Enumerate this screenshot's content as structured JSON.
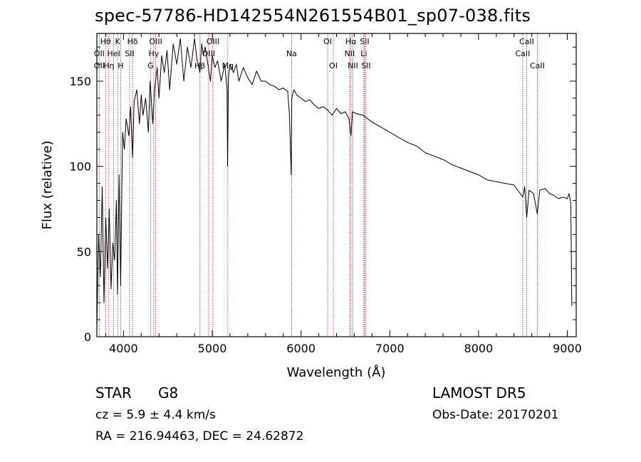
{
  "chart_data": {
    "type": "line",
    "title": "spec-57786-HD142554N261554B01_sp07-038.fits",
    "xlabel": "Wavelength (Å)",
    "ylabel": "Flux (relative)",
    "xlim": [
      3700,
      9100
    ],
    "ylim": [
      0,
      178
    ],
    "x_ticks": [
      4000,
      5000,
      6000,
      7000,
      8000,
      9000
    ],
    "y_ticks": [
      0,
      50,
      100,
      150
    ],
    "series": [
      {
        "x": [
          3700,
          3720,
          3740,
          3760,
          3780,
          3800,
          3820,
          3840,
          3860,
          3880,
          3900,
          3920,
          3933,
          3950,
          3968,
          3990,
          4010,
          4030,
          4060,
          4080,
          4102,
          4120,
          4150,
          4180,
          4200,
          4220,
          4250,
          4280,
          4300,
          4330,
          4350,
          4380,
          4400,
          4430,
          4460,
          4490,
          4520,
          4560,
          4600,
          4640,
          4680,
          4720,
          4760,
          4800,
          4830,
          4861,
          4880,
          4900,
          4920,
          4950,
          4980,
          5000,
          5030,
          5060,
          5100,
          5140,
          5167,
          5172,
          5183,
          5200,
          5240,
          5270,
          5300,
          5350,
          5400,
          5450,
          5500,
          5550,
          5600,
          5650,
          5700,
          5750,
          5800,
          5850,
          5870,
          5890,
          5896,
          5920,
          5950,
          6000,
          6050,
          6100,
          6150,
          6200,
          6250,
          6300,
          6350,
          6400,
          6450,
          6500,
          6540,
          6563,
          6580,
          6620,
          6700,
          6750,
          6800,
          6900,
          7000,
          7100,
          7200,
          7300,
          7400,
          7500,
          7600,
          7700,
          7800,
          7900,
          8000,
          8100,
          8200,
          8300,
          8400,
          8498,
          8520,
          8542,
          8570,
          8620,
          8662,
          8690,
          8750,
          8800,
          8850,
          8900,
          8950,
          9000,
          9020,
          9040,
          9050
        ],
        "y": [
          5,
          60,
          35,
          88,
          20,
          70,
          40,
          75,
          28,
          55,
          45,
          80,
          25,
          95,
          30,
          120,
          110,
          128,
          118,
          135,
          105,
          138,
          145,
          125,
          142,
          130,
          140,
          120,
          150,
          125,
          145,
          158,
          140,
          165,
          155,
          168,
          145,
          172,
          160,
          175,
          150,
          170,
          158,
          175,
          162,
          155,
          172,
          165,
          170,
          160,
          150,
          165,
          158,
          162,
          150,
          160,
          145,
          100,
          152,
          160,
          155,
          160,
          150,
          158,
          152,
          148,
          156,
          150,
          150,
          148,
          147,
          145,
          146,
          144,
          130,
          95,
          140,
          145,
          142,
          140,
          138,
          139,
          136,
          134,
          135,
          133,
          130,
          134,
          131,
          132,
          128,
          118,
          132,
          131,
          130,
          128,
          126,
          123,
          120,
          117,
          114,
          112,
          108,
          106,
          104,
          101,
          99,
          97,
          95,
          92,
          91,
          90,
          89,
          82,
          88,
          70,
          86,
          84,
          72,
          86,
          87,
          84,
          83,
          81,
          82,
          81,
          84,
          78,
          18
        ]
      }
    ],
    "spectral_lines": [
      {
        "label": "Hθ",
        "x": 3798,
        "row": 1
      },
      {
        "label": "OII",
        "x": 3727,
        "row": 2
      },
      {
        "label": "OII",
        "x": 3727,
        "row": 3
      },
      {
        "label": "K",
        "x": 3934,
        "row": 1
      },
      {
        "label": "HeI",
        "x": 3889,
        "row": 2
      },
      {
        "label": "Hη",
        "x": 3835,
        "row": 3
      },
      {
        "label": "Hδ",
        "x": 4102,
        "row": 1
      },
      {
        "label": "SII",
        "x": 4069,
        "row": 2
      },
      {
        "label": "H",
        "x": 3968,
        "row": 3
      },
      {
        "label": "OIII",
        "x": 4363,
        "row": 1
      },
      {
        "label": "Hγ",
        "x": 4341,
        "row": 2
      },
      {
        "label": "G",
        "x": 4305,
        "row": 3
      },
      {
        "label": "OIII",
        "x": 5007,
        "row": 1
      },
      {
        "label": "OIII",
        "x": 4959,
        "row": 2
      },
      {
        "label": "Hβ",
        "x": 4861,
        "row": 3
      },
      {
        "label": "Mg",
        "x": 5175,
        "row": 3
      },
      {
        "label": "Na",
        "x": 5894,
        "row": 2
      },
      {
        "label": "OI",
        "x": 6300,
        "row": 1
      },
      {
        "label": "OI",
        "x": 6364,
        "row": 3
      },
      {
        "label": "Hα",
        "x": 6563,
        "row": 1
      },
      {
        "label": "SII",
        "x": 6716,
        "row": 1
      },
      {
        "label": "NII",
        "x": 6548,
        "row": 2
      },
      {
        "label": "Li",
        "x": 6708,
        "row": 2
      },
      {
        "label": "NII",
        "x": 6584,
        "row": 3
      },
      {
        "label": "SII",
        "x": 6731,
        "row": 3
      },
      {
        "label": "CaII",
        "x": 8542,
        "row": 1
      },
      {
        "label": "CaII",
        "x": 8498,
        "row": 2
      },
      {
        "label": "CaII",
        "x": 8662,
        "row": 3
      }
    ]
  },
  "info": {
    "object_class": "STAR",
    "subclass": "G8",
    "redshift": "cz = 5.9 ± 4.4 km/s",
    "coords": "RA = 216.94463, DEC =  24.62872",
    "survey": "LAMOST DR5",
    "obs_date": "Obs-Date: 20170201"
  },
  "colors": {
    "line": "#000000",
    "marker": "#b22222",
    "axis": "#000000"
  }
}
